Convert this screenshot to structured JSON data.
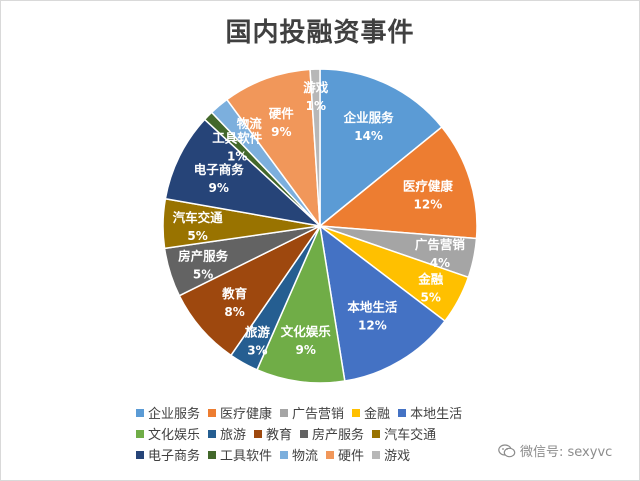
{
  "chart_data": {
    "type": "pie",
    "title": "国内投融资事件",
    "categories": [
      "企业服务",
      "医疗健康",
      "广告营销",
      "金融",
      "本地生活",
      "文化娱乐",
      "旅游",
      "教育",
      "房产服务",
      "汽车交通",
      "电子商务",
      "工具软件",
      "物流",
      "硬件",
      "游戏"
    ],
    "values": [
      14,
      12,
      4,
      5,
      12,
      9,
      3,
      8,
      5,
      5,
      9,
      1,
      2,
      9,
      1
    ],
    "data_labels": [
      "14%",
      "12%",
      "4%",
      "5%",
      "12%",
      "9%",
      "3%",
      "8%",
      "5%",
      "5%",
      "9%",
      "1%",
      "",
      "9%",
      "1%"
    ],
    "colors": [
      "#5b9bd5",
      "#ed7d31",
      "#a5a5a5",
      "#ffc000",
      "#4472c4",
      "#70ad47",
      "#255e91",
      "#9e480e",
      "#636363",
      "#997300",
      "#264478",
      "#43682b",
      "#7cafdd",
      "#f1975a",
      "#b7b7b7"
    ],
    "legend_position": "bottom"
  },
  "watermark": {
    "icon": "wechat-icon",
    "text": "微信号: sexyvc"
  }
}
